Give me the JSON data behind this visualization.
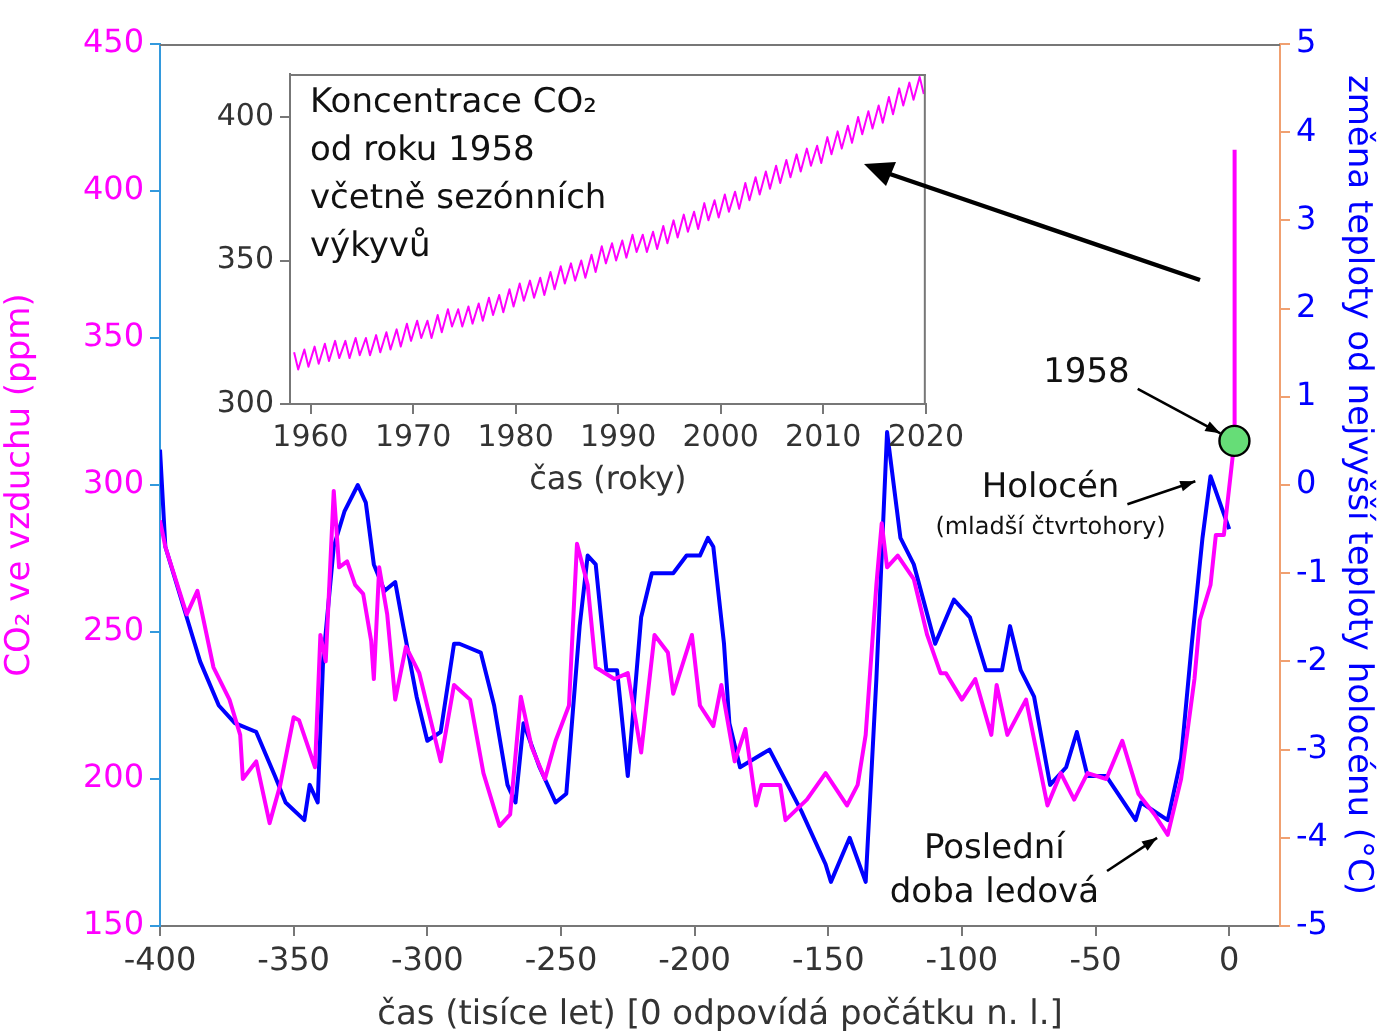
{
  "chart_data": [
    {
      "type": "line",
      "xlabel": "čas (tisíce let) [0 odpovídá počátku n. l.]",
      "ylabel": "CO₂ ve vzduchu (ppm)",
      "y2label": "změna teploty od nejvyšší teploty holocénu (°C)",
      "xlim": [
        -400,
        19
      ],
      "xticks": [
        -400,
        -350,
        -300,
        -250,
        -200,
        -150,
        -100,
        -50,
        0
      ],
      "ylim": [
        150,
        450
      ],
      "yticks": [
        150,
        200,
        250,
        300,
        350,
        400,
        450
      ],
      "y2lim": [
        -5,
        5
      ],
      "y2ticks": [
        -5,
        -4,
        -3,
        -2,
        -1,
        0,
        1,
        2,
        3,
        4,
        5
      ],
      "marker": "none",
      "series": [
        {
          "color": "#ff00ff",
          "x": [
            -400,
            -398,
            -390,
            -386,
            -380,
            -374,
            -370,
            -369,
            -364,
            -359,
            -355,
            -350,
            -348,
            -342,
            -340,
            -338,
            -335,
            -333,
            -330,
            -327,
            -324,
            -321,
            -320,
            -318,
            -315,
            -312,
            -308,
            -303,
            -295,
            -290,
            -284,
            -279,
            -273,
            -269,
            -265,
            -261,
            -256,
            -252,
            -247,
            -244,
            -240,
            -237,
            -230,
            -225,
            -220,
            -215,
            -210,
            -208,
            -201,
            -198,
            -193,
            -190,
            -185,
            -181,
            -177,
            -175,
            -168,
            -166,
            -158,
            -151,
            -143,
            -139,
            -136,
            -132,
            -130,
            -128,
            -124,
            -118,
            -113,
            -108,
            -106,
            -100,
            -95,
            -89,
            -87,
            -83,
            -76,
            -68,
            -63,
            -58,
            -53,
            -46,
            -40,
            -34,
            -28,
            -23,
            -18,
            -13,
            -11,
            -7,
            -5,
            -2,
            1.958,
            2.019
          ],
          "values": [
            288,
            279,
            256,
            264,
            238,
            227,
            215,
            200,
            206,
            185,
            198,
            221,
            220,
            204,
            249,
            240,
            298,
            272,
            274,
            266,
            263,
            247,
            234,
            272,
            256,
            227,
            245,
            236,
            206,
            232,
            227,
            202,
            184,
            188,
            228,
            211,
            200,
            213,
            225,
            280,
            266,
            238,
            234,
            236,
            209,
            249,
            243,
            229,
            249,
            225,
            218,
            232,
            206,
            217,
            191,
            198,
            198,
            186,
            193,
            202,
            191,
            198,
            215,
            266,
            287,
            272,
            276,
            268,
            249,
            236,
            236,
            227,
            234,
            215,
            232,
            215,
            227,
            191,
            202,
            193,
            202,
            200,
            213,
            195,
            188,
            181,
            200,
            234,
            254,
            266,
            283,
            283,
            315,
            414
          ]
        },
        {
          "color": "#0000ff",
          "axis": "y2",
          "x": [
            -400,
            -398,
            -387,
            -385,
            -378,
            -372,
            -364,
            -357,
            -353,
            -346,
            -344,
            -341,
            -339,
            -335,
            -331,
            -326,
            -323,
            -320,
            -316,
            -312,
            -309,
            -304,
            -300,
            -295,
            -290,
            -288,
            -280,
            -275,
            -270,
            -267,
            -264,
            -258,
            -252,
            -248,
            -243,
            -240,
            -237,
            -233,
            -229,
            -225,
            -220,
            -216,
            -208,
            -203,
            -198,
            -195,
            -193,
            -189,
            -187,
            -183,
            -172,
            -160,
            -151,
            -149,
            -142,
            -136,
            -132,
            -128,
            -123,
            -118,
            -110,
            -103,
            -97,
            -91,
            -85,
            -82,
            -78,
            -73,
            -67,
            -61,
            -57,
            -53,
            -46,
            -35,
            -33,
            -23,
            -18,
            -14,
            -10,
            -7,
            0
          ],
          "values": [
            0.4,
            -0.7,
            -1.8,
            -2.0,
            -2.5,
            -2.7,
            -2.8,
            -3.3,
            -3.6,
            -3.8,
            -3.4,
            -3.6,
            -2.0,
            -0.7,
            -0.3,
            0.0,
            -0.2,
            -0.9,
            -1.2,
            -1.1,
            -1.6,
            -2.4,
            -2.9,
            -2.8,
            -1.8,
            -1.8,
            -1.9,
            -2.5,
            -3.4,
            -3.6,
            -2.7,
            -3.2,
            -3.6,
            -3.5,
            -1.6,
            -0.8,
            -0.9,
            -2.1,
            -2.1,
            -3.3,
            -1.5,
            -1.0,
            -1.0,
            -0.8,
            -0.8,
            -0.6,
            -0.7,
            -1.8,
            -2.7,
            -3.2,
            -3.0,
            -3.7,
            -4.3,
            -4.5,
            -4.0,
            -4.5,
            -2.2,
            0.6,
            -0.6,
            -0.9,
            -1.8,
            -1.3,
            -1.5,
            -2.1,
            -2.1,
            -1.6,
            -2.1,
            -2.4,
            -3.4,
            -3.2,
            -2.8,
            -3.3,
            -3.3,
            -3.8,
            -3.6,
            -3.8,
            -3.1,
            -1.8,
            -0.6,
            0.1,
            -0.5
          ]
        },
        {
          "type": "scatter",
          "color": "#66dd77",
          "marker": "circle",
          "x": [
            1.958
          ],
          "values": [
            315
          ]
        }
      ],
      "annotations": [
        {
          "text": "1958",
          "x": 1.958,
          "y": 315
        },
        {
          "text": "Holocén",
          "x": -7,
          "y": 303
        },
        "(mladší čtvrtohory)",
        {
          "text": "Poslední doba ledová",
          "x": -22,
          "y": 183
        }
      ]
    },
    {
      "type": "line",
      "title": "Koncentrace CO₂ od roku 1958 včetně sezónních výkyvů",
      "xlabel": "čas (roky)",
      "xlim": [
        1958,
        2020
      ],
      "xticks": [
        1960,
        1970,
        1980,
        1990,
        2000,
        2010,
        2020
      ],
      "ylim": [
        300,
        415
      ],
      "yticks": [
        300,
        350,
        400
      ],
      "marker": "none",
      "series": [
        {
          "color": "#ff00ff",
          "x": [
            1958.4,
            1958.8,
            1959.4,
            1959.8,
            1960.4,
            1960.8,
            1961.4,
            1961.8,
            1962.4,
            1962.8,
            1963.4,
            1963.8,
            1964.4,
            1964.8,
            1965.4,
            1965.8,
            1966.4,
            1966.8,
            1967.4,
            1967.8,
            1968.4,
            1968.8,
            1969.4,
            1969.8,
            1970.4,
            1970.8,
            1971.4,
            1971.8,
            1972.4,
            1972.8,
            1973.4,
            1973.8,
            1974.4,
            1974.8,
            1975.4,
            1975.8,
            1976.4,
            1976.8,
            1977.4,
            1977.8,
            1978.4,
            1978.8,
            1979.4,
            1979.8,
            1980.4,
            1980.8,
            1981.4,
            1981.8,
            1982.4,
            1982.8,
            1983.4,
            1983.8,
            1984.4,
            1984.8,
            1985.4,
            1985.8,
            1986.4,
            1986.8,
            1987.4,
            1987.8,
            1988.4,
            1988.8,
            1989.4,
            1989.8,
            1990.4,
            1990.8,
            1991.4,
            1991.8,
            1992.4,
            1992.8,
            1993.4,
            1993.8,
            1994.4,
            1994.8,
            1995.4,
            1995.8,
            1996.4,
            1996.8,
            1997.4,
            1997.8,
            1998.4,
            1998.8,
            1999.4,
            1999.8,
            2000.4,
            2000.8,
            2001.4,
            2001.8,
            2002.4,
            2002.8,
            2003.4,
            2003.8,
            2004.4,
            2004.8,
            2005.4,
            2005.8,
            2006.4,
            2006.8,
            2007.4,
            2007.8,
            2008.4,
            2008.8,
            2009.4,
            2009.8,
            2010.4,
            2010.8,
            2011.4,
            2011.8,
            2012.4,
            2012.8,
            2013.4,
            2013.8,
            2014.4,
            2014.8,
            2015.4,
            2015.8,
            2016.4,
            2016.8,
            2017.4,
            2017.8,
            2018.4,
            2018.8,
            2019.4,
            2019.8
          ],
          "values": [
            318,
            312,
            319,
            313,
            320,
            314,
            321,
            315,
            322,
            316,
            322,
            316,
            323,
            317,
            323,
            317,
            324,
            318,
            325,
            319,
            326,
            320,
            328,
            322,
            329,
            323,
            329,
            323,
            331,
            325,
            333,
            327,
            333,
            327,
            334,
            328,
            335,
            329,
            337,
            331,
            338,
            332,
            340,
            334,
            342,
            336,
            343,
            337,
            344,
            338,
            346,
            340,
            348,
            342,
            349,
            343,
            350,
            344,
            352,
            346,
            355,
            349,
            356,
            350,
            357,
            351,
            359,
            353,
            359,
            353,
            360,
            354,
            362,
            356,
            364,
            358,
            366,
            360,
            367,
            361,
            370,
            364,
            371,
            365,
            373,
            367,
            374,
            368,
            377,
            371,
            379,
            373,
            381,
            375,
            383,
            377,
            385,
            379,
            387,
            381,
            389,
            383,
            390,
            384,
            393,
            387,
            395,
            389,
            397,
            391,
            400,
            394,
            402,
            396,
            404,
            398,
            407,
            401,
            410,
            404,
            412,
            406,
            414,
            408
          ]
        }
      ]
    }
  ]
}
